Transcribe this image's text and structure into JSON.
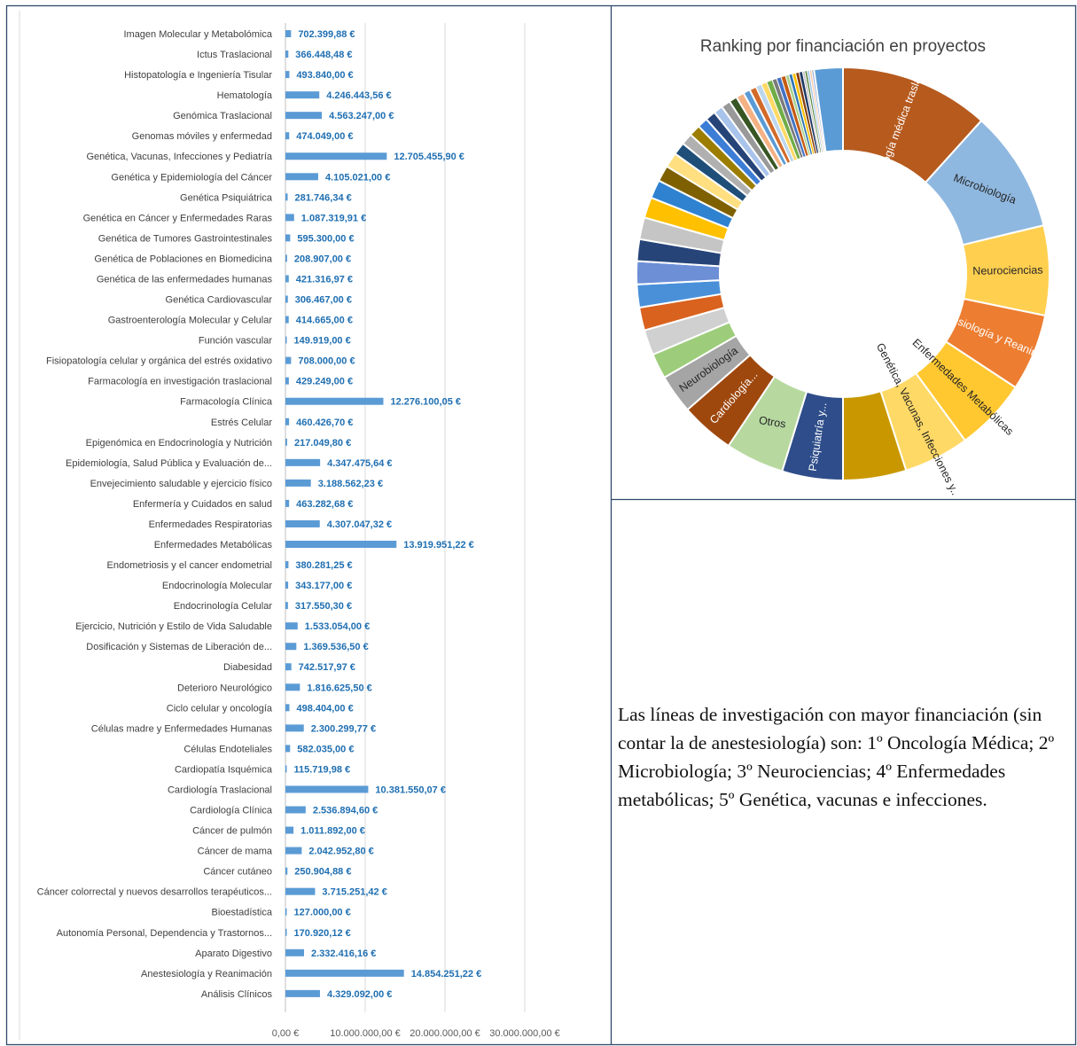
{
  "chart_data": [
    {
      "type": "bar",
      "orientation": "horizontal",
      "title": "",
      "xlabel": "",
      "ylabel": "",
      "xlim": [
        0,
        30000000
      ],
      "x_ticks": [
        "0,00 €",
        "10.000.000,00 €",
        "20.000.000,00 €",
        "30.000.000,00 €"
      ],
      "grid": true,
      "bar_color": "#5b9bd5",
      "categories": [
        "Imagen Molecular y Metabolómica",
        "Ictus Traslacional",
        "Histopatología e Ingeniería Tisular",
        "Hematología",
        "Genómica Traslacional",
        "Genomas móviles y enfermedad",
        "Genética, Vacunas, Infecciones y Pediatría",
        "Genética y Epidemiología del Cáncer",
        "Genética Psiquiátrica",
        "Genética en Cáncer y Enfermedades Raras",
        "Genética de Tumores Gastrointestinales",
        "Genética de Poblaciones en Biomedicina",
        "Genética de las enfermedades humanas",
        "Genética Cardiovascular",
        "Gastroenterología Molecular y Celular",
        "Función vascular",
        "Fisiopatología celular y orgánica del estrés oxidativo",
        "Farmacología en investigación traslacional",
        "Farmacología Clínica",
        "Estrés Celular",
        "Epigenómica en Endocrinología y Nutrición",
        "Epidemiología, Salud Pública y Evaluación de...",
        "Envejecimiento saludable y ejercicio físico",
        "Enfermería y Cuidados en salud",
        "Enfermedades Respiratorias",
        "Enfermedades Metabólicas",
        "Endometriosis y el cancer endometrial",
        "Endocrinología Molecular",
        "Endocrinología Celular",
        "Ejercicio, Nutrición y Estilo de Vida Saludable",
        "Dosificación y Sistemas de Liberación de...",
        "Diabesidad",
        "Deterioro Neurológico",
        "Ciclo celular y oncología",
        "Células madre y Enfermedades Humanas",
        "Células Endoteliales",
        "Cardiopatía Isquémica",
        "Cardiología Traslacional",
        "Cardiología Clínica",
        "Cáncer de pulmón",
        "Cáncer de mama",
        "Cáncer cutáneo",
        "Cáncer colorrectal y nuevos desarrollos terapéuticos...",
        "Bioestadística",
        "Autonomía Personal, Dependencia y Trastornos...",
        "Aparato Digestivo",
        "Anestesiología y Reanimación",
        "Análisis Clínicos"
      ],
      "values": [
        702399.88,
        366448.48,
        493840.0,
        4246443.56,
        4563247.0,
        474049.0,
        12705455.9,
        4105021.0,
        281746.34,
        1087319.91,
        595300.0,
        208907.0,
        421316.97,
        306467.0,
        414665.0,
        149919.0,
        708000.0,
        429249.0,
        12276100.05,
        460426.7,
        217049.8,
        4347475.64,
        3188562.23,
        463282.68,
        4307047.32,
        13919951.22,
        380281.25,
        343177.0,
        317550.3,
        1533054.0,
        1369536.5,
        742517.97,
        1816625.5,
        498404.0,
        2300299.77,
        582035.0,
        115719.98,
        10381550.07,
        2536894.6,
        1011892.0,
        2042952.8,
        250904.88,
        3715251.42,
        127000.0,
        170920.12,
        2332416.16,
        14854251.22,
        4329092.0
      ],
      "value_labels": [
        "702.399,88 €",
        "366.448,48 €",
        "493.840,00 €",
        "4.246.443,56 €",
        "4.563.247,00 €",
        "474.049,00 €",
        "12.705.455,90 €",
        "4.105.021,00 €",
        "281.746,34 €",
        "1.087.319,91 €",
        "595.300,00 €",
        "208.907,00 €",
        "421.316,97 €",
        "306.467,00 €",
        "414.665,00 €",
        "149.919,00 €",
        "708.000,00 €",
        "429.249,00 €",
        "12.276.100,05 €",
        "460.426,70 €",
        "217.049,80 €",
        "4.347.475,64 €",
        "3.188.562,23 €",
        "463.282,68 €",
        "4.307.047,32 €",
        "13.919.951,22 €",
        "380.281,25 €",
        "343.177,00 €",
        "317.550,30 €",
        "1.533.054,00 €",
        "1.369.536,50 €",
        "742.517,97 €",
        "1.816.625,50 €",
        "498.404,00 €",
        "2.300.299,77 €",
        "582.035,00 €",
        "115.719,98 €",
        "10.381.550,07 €",
        "2.536.894,60 €",
        "1.011.892,00 €",
        "2.042.952,80 €",
        "250.904,88 €",
        "3.715.251,42 €",
        "127.000,00 €",
        "170.920,12 €",
        "2.332.416,16 €",
        "14.854.251,22 €",
        "4.329.092,00 €"
      ]
    },
    {
      "type": "pie",
      "variant": "donut",
      "title": "Ranking por financiación en proyectos",
      "legend": "none",
      "start_angle_deg": 0,
      "slices": [
        {
          "label": "Oncología médica traslacional",
          "value": 13.0,
          "color": "#b65a1e",
          "label_color": "#ffffff"
        },
        {
          "label": "Microbiología",
          "value": 10.6,
          "color": "#8fb8e0",
          "label_color": "#262626"
        },
        {
          "label": "Neurociencias",
          "value": 7.8,
          "color": "#ffcf4f",
          "label_color": "#262626"
        },
        {
          "label": "Anestesiología y Reanimación",
          "value": 6.7,
          "color": "#ed7d31",
          "label_color": "#ffffff"
        },
        {
          "label": "Enfermedades Metabólicas",
          "value": 6.3,
          "color": "#ffc830",
          "label_color": "#262626"
        },
        {
          "label": "Genética, Vacunas, Infecciones y...",
          "value": 5.7,
          "color": "#ffd966",
          "label_color": "#262626"
        },
        {
          "label": "",
          "value": 5.5,
          "color": "#c99800",
          "label_color": "#262626"
        },
        {
          "label": "Psiquiatría y...",
          "value": 5.3,
          "color": "#2e4d8a",
          "label_color": "#ffffff"
        },
        {
          "label": "Otros",
          "value": 5.1,
          "color": "#b7d9a0",
          "label_color": "#262626"
        },
        {
          "label": "Cardiología...",
          "value": 4.7,
          "color": "#9e480e",
          "label_color": "#ffffff"
        },
        {
          "label": "Neurobiología",
          "value": 3.4,
          "color": "#a5a5a5",
          "label_color": "#262626"
        },
        {
          "label": "",
          "value": 2.2,
          "color": "#9dcd7a",
          "label_color": "#262626"
        },
        {
          "label": "",
          "value": 2.2,
          "color": "#d0d0d0",
          "label_color": "#262626"
        },
        {
          "label": "",
          "value": 2.0,
          "color": "#d9621e",
          "label_color": "#262626"
        },
        {
          "label": "",
          "value": 2.0,
          "color": "#4a90d9",
          "label_color": "#262626"
        },
        {
          "label": "",
          "value": 2.0,
          "color": "#6c8fd6",
          "label_color": "#262626"
        },
        {
          "label": "",
          "value": 1.9,
          "color": "#264478",
          "label_color": "#262626"
        },
        {
          "label": "",
          "value": 1.9,
          "color": "#c5c5c5",
          "label_color": "#262626"
        },
        {
          "label": "",
          "value": 1.8,
          "color": "#ffc000",
          "label_color": "#262626"
        },
        {
          "label": "",
          "value": 1.6,
          "color": "#2f82d0",
          "label_color": "#262626"
        },
        {
          "label": "",
          "value": 1.4,
          "color": "#7f6000",
          "label_color": "#262626"
        },
        {
          "label": "",
          "value": 1.3,
          "color": "#ffdf80",
          "label_color": "#262626"
        },
        {
          "label": "",
          "value": 1.1,
          "color": "#1f4e79",
          "label_color": "#262626"
        },
        {
          "label": "",
          "value": 1.0,
          "color": "#b0b0b0",
          "label_color": "#262626"
        },
        {
          "label": "",
          "value": 1.0,
          "color": "#9c7d00",
          "label_color": "#262626"
        },
        {
          "label": "",
          "value": 0.9,
          "color": "#3c7dd6",
          "label_color": "#262626"
        },
        {
          "label": "",
          "value": 0.9,
          "color": "#264478",
          "label_color": "#262626"
        },
        {
          "label": "",
          "value": 0.8,
          "color": "#a9c4eb",
          "label_color": "#262626"
        },
        {
          "label": "",
          "value": 0.8,
          "color": "#999999",
          "label_color": "#262626"
        },
        {
          "label": "",
          "value": 0.7,
          "color": "#375623",
          "label_color": "#262626"
        },
        {
          "label": "",
          "value": 0.7,
          "color": "#f4b183",
          "label_color": "#262626"
        },
        {
          "label": "",
          "value": 0.6,
          "color": "#5b9bd5",
          "label_color": "#262626"
        },
        {
          "label": "",
          "value": 0.6,
          "color": "#d26a2a",
          "label_color": "#262626"
        },
        {
          "label": "",
          "value": 0.5,
          "color": "#bdd7ee",
          "label_color": "#262626"
        },
        {
          "label": "",
          "value": 0.5,
          "color": "#ffd966",
          "label_color": "#262626"
        },
        {
          "label": "",
          "value": 0.5,
          "color": "#70ad47",
          "label_color": "#262626"
        },
        {
          "label": "",
          "value": 0.4,
          "color": "#7b7b7b",
          "label_color": "#262626"
        },
        {
          "label": "",
          "value": 0.4,
          "color": "#4472c4",
          "label_color": "#262626"
        },
        {
          "label": "",
          "value": 0.4,
          "color": "#c55a11",
          "label_color": "#262626"
        },
        {
          "label": "",
          "value": 0.3,
          "color": "#a9d18e",
          "label_color": "#262626"
        },
        {
          "label": "",
          "value": 0.3,
          "color": "#2e75b6",
          "label_color": "#262626"
        },
        {
          "label": "",
          "value": 0.3,
          "color": "#ffc000",
          "label_color": "#262626"
        },
        {
          "label": "",
          "value": 0.3,
          "color": "#843c0c",
          "label_color": "#262626"
        },
        {
          "label": "",
          "value": 0.3,
          "color": "#1f3864",
          "label_color": "#262626"
        },
        {
          "label": "",
          "value": 0.2,
          "color": "#bfbfbf",
          "label_color": "#262626"
        },
        {
          "label": "",
          "value": 0.2,
          "color": "#548235",
          "label_color": "#262626"
        },
        {
          "label": "",
          "value": 0.2,
          "color": "#9dc3e6",
          "label_color": "#262626"
        },
        {
          "label": "",
          "value": 0.2,
          "color": "#f8cbad",
          "label_color": "#262626"
        },
        {
          "label": "",
          "value": 0.2,
          "color": "#8faadc",
          "label_color": "#262626"
        },
        {
          "label": "",
          "value": 2.5,
          "color": "#5b9bd5",
          "label_color": "#262626"
        }
      ]
    }
  ],
  "note": {
    "text": "Las líneas de investigación con mayor financiación (sin contar la de anestesiología) son: 1º Oncología Médica; 2º Microbiología; 3º Neurociencias; 4º Enfermedades metabólicas; 5º Genética, vacunas e infecciones."
  },
  "colors": {
    "frame_border": "#2e4a6b",
    "gridline": "#d9d9d9"
  }
}
